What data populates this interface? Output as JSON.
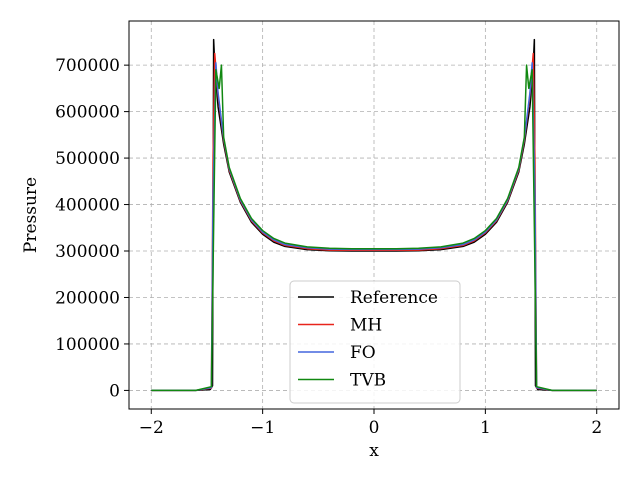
{
  "chart_data": {
    "type": "line",
    "title": "",
    "xlabel": "x",
    "ylabel": "Pressure",
    "xlim": [
      -2.2,
      2.2
    ],
    "ylim": [
      -40000,
      795000
    ],
    "xticks": [
      -2,
      -1,
      0,
      1,
      2
    ],
    "xtick_labels": [
      "−2",
      "−1",
      "0",
      "1",
      "2"
    ],
    "yticks": [
      0,
      100000,
      200000,
      300000,
      400000,
      500000,
      600000,
      700000
    ],
    "ytick_labels": [
      "0",
      "100000",
      "200000",
      "300000",
      "400000",
      "500000",
      "600000",
      "700000"
    ],
    "grid": true,
    "legend_position": "lower center",
    "series": [
      {
        "name": "Reference",
        "color": "#000000",
        "x": [
          -2.0,
          -1.6,
          -1.47,
          -1.45,
          -1.44,
          -1.43,
          -1.4,
          -1.35,
          -1.3,
          -1.2,
          -1.1,
          -1.0,
          -0.9,
          -0.8,
          -0.6,
          -0.4,
          -0.2,
          0.0,
          0.2,
          0.4,
          0.6,
          0.8,
          0.9,
          1.0,
          1.1,
          1.2,
          1.3,
          1.35,
          1.4,
          1.43,
          1.44,
          1.45,
          1.47,
          1.6,
          2.0
        ],
        "y": [
          0,
          0,
          2000,
          10000,
          755000,
          700000,
          610000,
          530000,
          470000,
          405000,
          362000,
          336000,
          319000,
          310000,
          303000,
          300500,
          300000,
          300000,
          300000,
          300500,
          303000,
          310000,
          319000,
          336000,
          362000,
          405000,
          470000,
          530000,
          610000,
          700000,
          755000,
          10000,
          2000,
          0,
          0
        ]
      },
      {
        "name": "MH",
        "color": "#e8241c",
        "x": [
          -2.0,
          -1.6,
          -1.46,
          -1.445,
          -1.43,
          -1.4,
          -1.35,
          -1.3,
          -1.2,
          -1.1,
          -1.0,
          -0.9,
          -0.8,
          -0.6,
          -0.4,
          -0.2,
          0.0,
          0.2,
          0.4,
          0.6,
          0.8,
          0.9,
          1.0,
          1.1,
          1.2,
          1.3,
          1.35,
          1.4,
          1.43,
          1.445,
          1.46,
          1.6,
          2.0
        ],
        "y": [
          0,
          0,
          5000,
          500000,
          725000,
          635000,
          538000,
          474000,
          408000,
          365000,
          339000,
          322000,
          312000,
          305000,
          302000,
          301500,
          301500,
          301500,
          302000,
          305000,
          312000,
          322000,
          339000,
          365000,
          408000,
          474000,
          538000,
          635000,
          725000,
          500000,
          5000,
          0,
          0
        ]
      },
      {
        "name": "FO",
        "color": "#4466dd",
        "x": [
          -2.0,
          -1.6,
          -1.46,
          -1.445,
          -1.42,
          -1.4,
          -1.35,
          -1.3,
          -1.2,
          -1.1,
          -1.0,
          -0.9,
          -0.8,
          -0.6,
          -0.4,
          -0.2,
          0.0,
          0.2,
          0.4,
          0.6,
          0.8,
          0.9,
          1.0,
          1.1,
          1.2,
          1.3,
          1.35,
          1.4,
          1.42,
          1.445,
          1.46,
          1.6,
          2.0
        ],
        "y": [
          0,
          0,
          6000,
          420000,
          705000,
          640000,
          542000,
          477000,
          410000,
          367000,
          341000,
          324000,
          314000,
          307000,
          304000,
          303500,
          303500,
          303500,
          304000,
          307000,
          314000,
          324000,
          341000,
          367000,
          410000,
          477000,
          542000,
          640000,
          705000,
          420000,
          6000,
          0,
          0
        ]
      },
      {
        "name": "TVB",
        "color": "#118811",
        "x": [
          -2.0,
          -1.6,
          -1.46,
          -1.44,
          -1.42,
          -1.39,
          -1.37,
          -1.35,
          -1.3,
          -1.2,
          -1.1,
          -1.0,
          -0.9,
          -0.8,
          -0.6,
          -0.4,
          -0.2,
          0.0,
          0.2,
          0.4,
          0.6,
          0.8,
          0.9,
          1.0,
          1.1,
          1.2,
          1.3,
          1.35,
          1.37,
          1.39,
          1.42,
          1.44,
          1.46,
          1.6,
          2.0
        ],
        "y": [
          0,
          0,
          8000,
          350000,
          690000,
          650000,
          700000,
          545000,
          480000,
          413000,
          370000,
          344000,
          327000,
          317000,
          309000,
          306000,
          305000,
          305000,
          305000,
          306000,
          309000,
          317000,
          327000,
          344000,
          370000,
          413000,
          480000,
          545000,
          700000,
          650000,
          690000,
          350000,
          8000,
          0,
          0
        ]
      }
    ]
  }
}
